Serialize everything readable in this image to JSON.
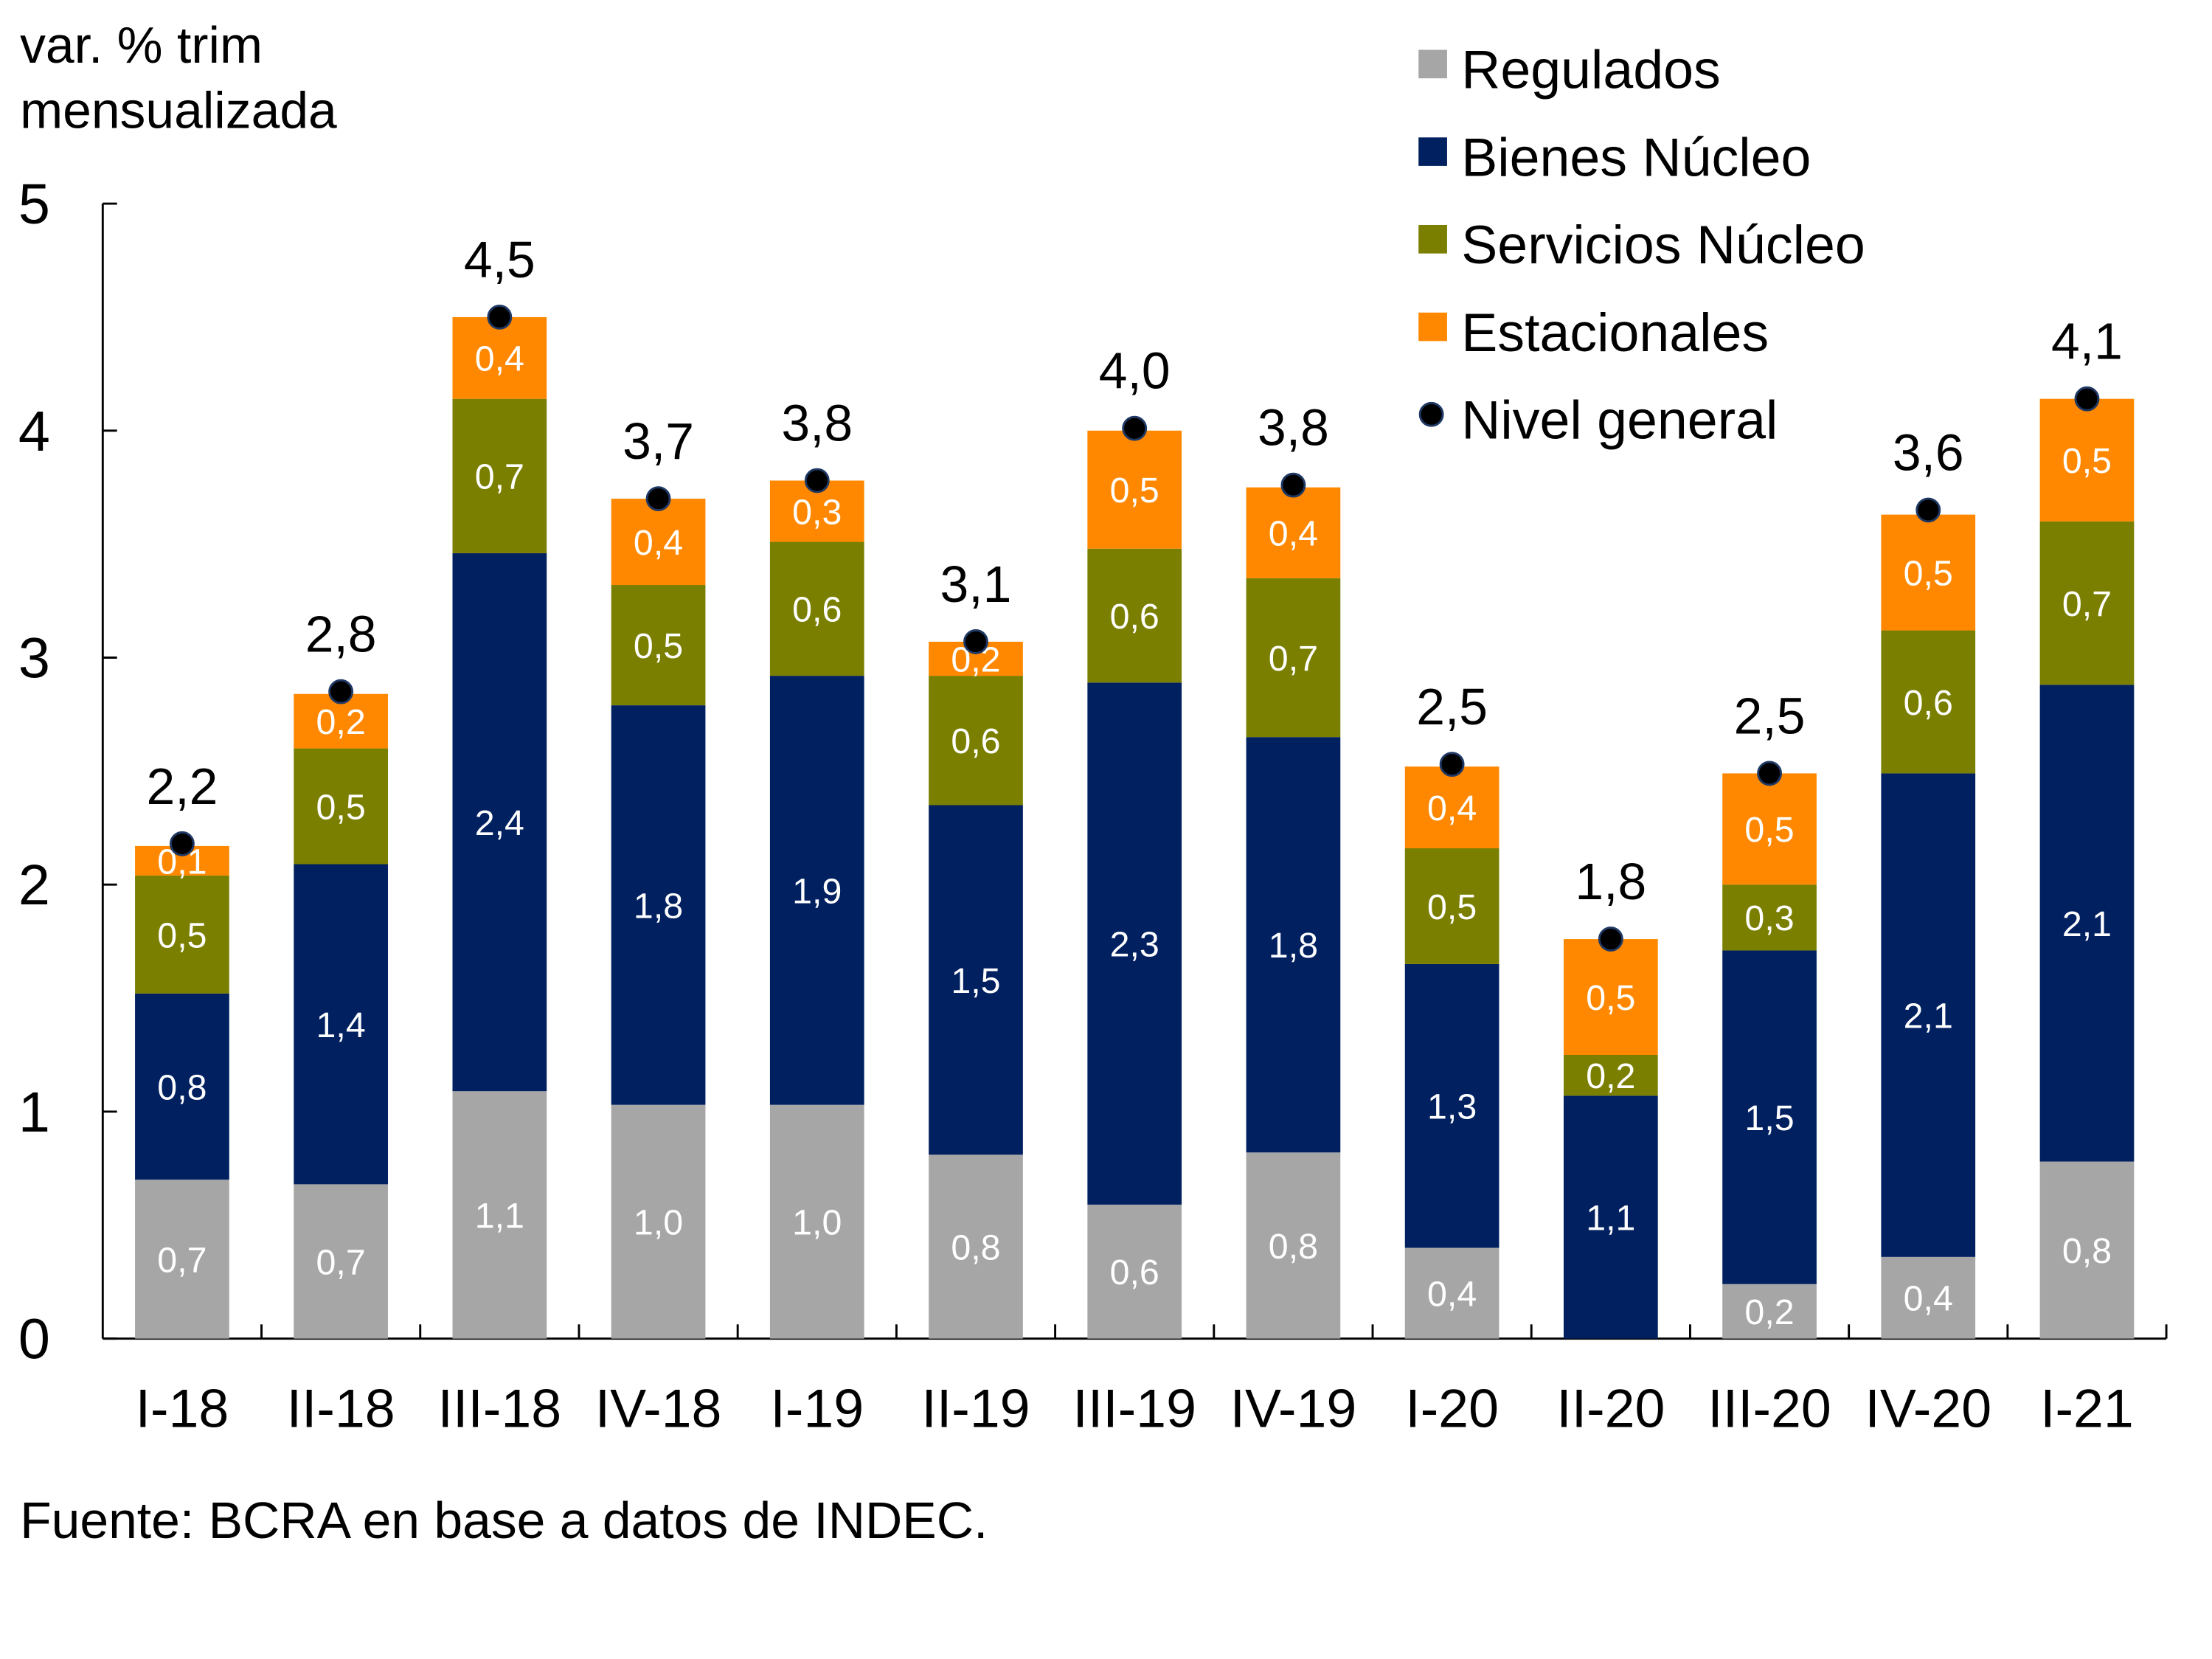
{
  "chart_data": {
    "type": "bar",
    "stacked": true,
    "title": "",
    "ylabel": "var. % trim mensualizada",
    "ylabel_lines": [
      "var. % trim",
      "mensualizada"
    ],
    "xlabel": "",
    "ylim": [
      0,
      5
    ],
    "yticks": [
      0,
      1,
      2,
      3,
      4,
      5
    ],
    "ytick_labels": [
      "0",
      "1",
      "2",
      "3",
      "4",
      "5"
    ],
    "grid": false,
    "legend_position": "top-right",
    "categories": [
      "I-18",
      "II-18",
      "III-18",
      "IV-18",
      "I-19",
      "II-19",
      "III-19",
      "IV-19",
      "I-20",
      "II-20",
      "III-20",
      "IV-20",
      "I-21"
    ],
    "series": [
      {
        "name": "Regulados",
        "color": "#a6a6a6",
        "values": [
          0.7,
          0.68,
          1.09,
          1.03,
          1.03,
          0.81,
          0.59,
          0.82,
          0.4,
          0.0,
          0.24,
          0.36,
          0.78
        ],
        "labels": [
          "0,7",
          "0,7",
          "1,1",
          "1,0",
          "1,0",
          "0,8",
          "0,6",
          "0,8",
          "0,4",
          "",
          "0,2",
          "0,4",
          "0,8"
        ]
      },
      {
        "name": "Bienes Núcleo",
        "color": "#002060",
        "values": [
          0.82,
          1.41,
          2.37,
          1.76,
          1.89,
          1.54,
          2.3,
          1.83,
          1.25,
          1.07,
          1.47,
          2.13,
          2.1
        ],
        "labels": [
          "0,8",
          "1,4",
          "2,4",
          "1,8",
          "1,9",
          "1,5",
          "2,3",
          "1,8",
          "1,3",
          "1,1",
          "1,5",
          "2,1",
          "2,1"
        ]
      },
      {
        "name": "Servicios Núcleo",
        "color": "#7a7f00",
        "values": [
          0.52,
          0.51,
          0.68,
          0.53,
          0.59,
          0.57,
          0.59,
          0.7,
          0.51,
          0.18,
          0.29,
          0.63,
          0.72
        ],
        "labels": [
          "0,5",
          "0,5",
          "0,7",
          "0,5",
          "0,6",
          "0,6",
          "0,6",
          "0,7",
          "0,5",
          "0,2",
          "0,3",
          "0,6",
          "0,7"
        ]
      },
      {
        "name": "Estacionales",
        "color": "#ff8800",
        "values": [
          0.13,
          0.24,
          0.36,
          0.38,
          0.27,
          0.15,
          0.52,
          0.4,
          0.36,
          0.51,
          0.49,
          0.51,
          0.54
        ],
        "labels": [
          "0,1",
          "0,2",
          "0,4",
          "0,4",
          "0,3",
          "0,2",
          "0,5",
          "0,4",
          "0,4",
          "0,5",
          "0,5",
          "0,5",
          "0,5"
        ]
      }
    ],
    "line_series": {
      "name": "Nivel general",
      "marker": "dot",
      "color": "#000000",
      "values": [
        2.18,
        2.85,
        4.5,
        3.7,
        3.78,
        3.07,
        4.01,
        3.76,
        2.53,
        1.76,
        2.49,
        3.65,
        4.14
      ],
      "labels": [
        "2,2",
        "2,8",
        "4,5",
        "3,7",
        "3,8",
        "3,1",
        "4,0",
        "3,8",
        "2,5",
        "1,8",
        "2,5",
        "3,6",
        "4,1"
      ]
    },
    "source": "Fuente: BCRA en base a datos de INDEC."
  }
}
